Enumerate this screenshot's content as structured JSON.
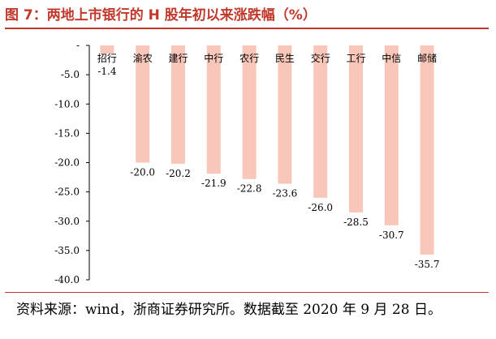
{
  "title": "图 7：两地上市银行的 H 股年初以来涨跌幅（%）",
  "source": "资料来源：wind，浙商证券研究所。数据截至 2020 年 9 月 28 日。",
  "chart_data": {
    "type": "bar",
    "title": "图 7：两地上市银行的 H 股年初以来涨跌幅（%）",
    "xlabel": "",
    "ylabel": "",
    "categories": [
      "招行",
      "渝农",
      "建行",
      "中行",
      "农行",
      "民生",
      "交行",
      "工行",
      "中信",
      "邮储"
    ],
    "values": [
      -1.4,
      -20.0,
      -20.2,
      -21.9,
      -22.8,
      -23.6,
      -26.0,
      -28.5,
      -30.7,
      -35.7
    ],
    "value_labels": [
      "-1.4",
      "-20.0",
      "-20.2",
      "-21.9",
      "-22.8",
      "-23.6",
      "-26.0",
      "-28.5",
      "-30.7",
      "-35.7"
    ],
    "ylim": [
      -40,
      0
    ],
    "yticks": [
      0,
      -5,
      -10,
      -15,
      -20,
      -25,
      -30,
      -35,
      -40
    ],
    "ytick_labels": [
      "-",
      "-5.0",
      "-10.0",
      "-15.0",
      "-20.0",
      "-25.0",
      "-30.0",
      "-35.0",
      "-40.0"
    ],
    "grid": false,
    "legend": "none",
    "bar_color": "#f9c7ba"
  }
}
